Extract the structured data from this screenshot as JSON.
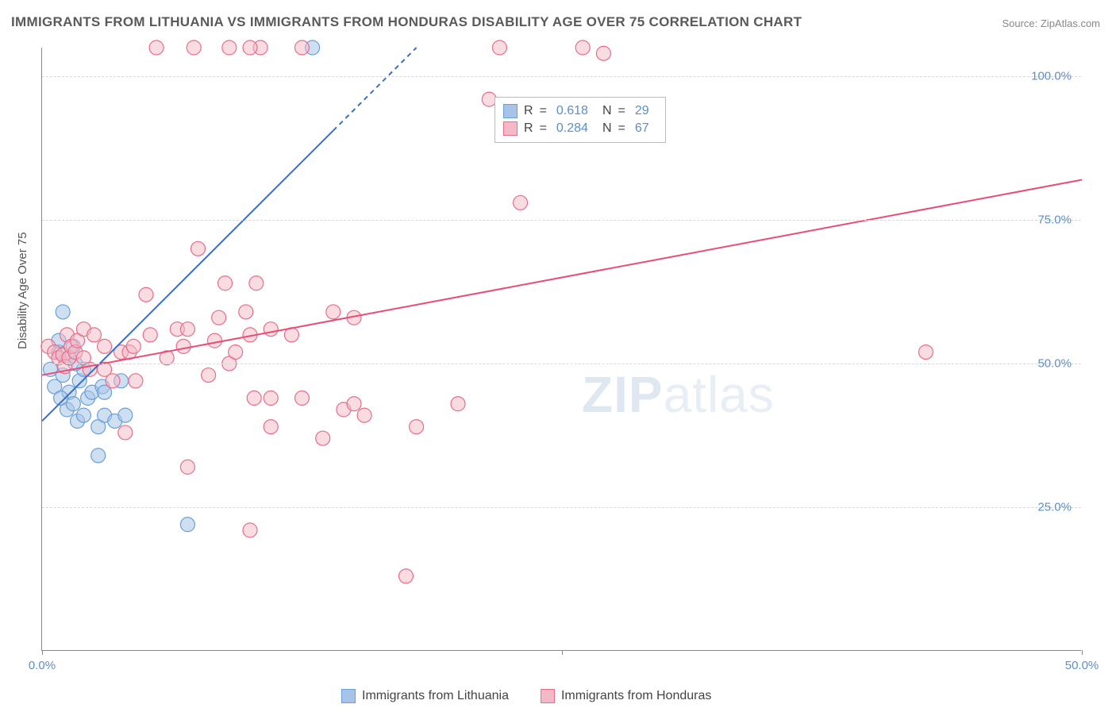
{
  "title": "IMMIGRANTS FROM LITHUANIA VS IMMIGRANTS FROM HONDURAS DISABILITY AGE OVER 75 CORRELATION CHART",
  "source": "Source: ZipAtlas.com",
  "y_axis_label": "Disability Age Over 75",
  "watermark_bold": "ZIP",
  "watermark_rest": "atlas",
  "chart": {
    "type": "scatter",
    "background_color": "#ffffff",
    "grid_color": "#d8d8d8",
    "axis_color": "#888888",
    "xlim": [
      0,
      50
    ],
    "ylim": [
      0,
      105
    ],
    "x_ticks": [
      0,
      25,
      50
    ],
    "x_tick_labels": [
      "0.0%",
      "",
      "50.0%"
    ],
    "y_ticks": [
      25,
      50,
      75,
      100
    ],
    "y_tick_labels": [
      "25.0%",
      "50.0%",
      "75.0%",
      "100.0%"
    ],
    "tick_label_color": "#5b8ecb",
    "tick_label_fontsize": 15,
    "axis_label_color": "#555555",
    "axis_label_fontsize": 15,
    "title_fontsize": 17,
    "title_color": "#5a5a5a"
  },
  "series": [
    {
      "name": "Immigrants from Lithuania",
      "color_fill": "#a7c4e8",
      "color_stroke": "#6a9fd6",
      "marker_radius": 9,
      "fill_opacity": 0.55,
      "R": "0.618",
      "N": "29",
      "trend": {
        "x0": 0,
        "y0": 40,
        "x1": 18,
        "y1": 105,
        "dash_from_x": 14,
        "stroke": "#3a6fc4",
        "stroke_width": 2
      },
      "points": [
        [
          0.4,
          49
        ],
        [
          0.6,
          46
        ],
        [
          0.8,
          52
        ],
        [
          0.8,
          54
        ],
        [
          1.0,
          48
        ],
        [
          1.0,
          59
        ],
        [
          1.2,
          42
        ],
        [
          1.3,
          45
        ],
        [
          1.3,
          51
        ],
        [
          1.5,
          43
        ],
        [
          1.5,
          53
        ],
        [
          1.7,
          40
        ],
        [
          1.8,
          47
        ],
        [
          2.0,
          41
        ],
        [
          2.0,
          49
        ],
        [
          2.2,
          44
        ],
        [
          2.4,
          45
        ],
        [
          2.7,
          34
        ],
        [
          2.7,
          39
        ],
        [
          2.9,
          46
        ],
        [
          3.0,
          45
        ],
        [
          3.0,
          41
        ],
        [
          3.5,
          40
        ],
        [
          4.0,
          41
        ],
        [
          3.8,
          47
        ],
        [
          7.0,
          22
        ],
        [
          13.0,
          105
        ],
        [
          1.6,
          50
        ],
        [
          0.9,
          44
        ]
      ]
    },
    {
      "name": "Immigrants from Honduras",
      "color_fill": "#f4b8c6",
      "color_stroke": "#e86d8a",
      "marker_radius": 9,
      "fill_opacity": 0.5,
      "R": "0.284",
      "N": "67",
      "trend": {
        "x0": 0,
        "y0": 48,
        "x1": 50,
        "y1": 82,
        "stroke": "#e94d77",
        "stroke_width": 2
      },
      "points": [
        [
          0.3,
          53
        ],
        [
          0.6,
          52
        ],
        [
          0.8,
          51
        ],
        [
          1.0,
          51.5
        ],
        [
          1.1,
          49.5
        ],
        [
          1.2,
          55
        ],
        [
          1.3,
          51
        ],
        [
          1.4,
          53
        ],
        [
          1.6,
          52
        ],
        [
          1.7,
          54
        ],
        [
          2.0,
          56
        ],
        [
          2.0,
          51
        ],
        [
          2.3,
          49
        ],
        [
          2.5,
          55
        ],
        [
          3.0,
          53
        ],
        [
          3.0,
          49
        ],
        [
          3.4,
          47
        ],
        [
          3.8,
          52
        ],
        [
          4.0,
          38
        ],
        [
          4.2,
          52
        ],
        [
          4.4,
          53
        ],
        [
          4.5,
          47
        ],
        [
          5.0,
          62
        ],
        [
          5.2,
          55
        ],
        [
          5.5,
          105
        ],
        [
          6.0,
          51
        ],
        [
          6.5,
          56
        ],
        [
          6.8,
          53
        ],
        [
          7.0,
          32
        ],
        [
          7.0,
          56
        ],
        [
          7.3,
          105
        ],
        [
          7.5,
          70
        ],
        [
          8.0,
          48
        ],
        [
          8.3,
          54
        ],
        [
          8.5,
          58
        ],
        [
          8.8,
          64
        ],
        [
          9.0,
          50
        ],
        [
          9.0,
          105
        ],
        [
          9.3,
          52
        ],
        [
          9.8,
          59
        ],
        [
          10.2,
          44
        ],
        [
          10.0,
          21
        ],
        [
          10.0,
          55
        ],
        [
          10.3,
          64
        ],
        [
          10.5,
          105
        ],
        [
          11.0,
          56
        ],
        [
          11.0,
          39
        ],
        [
          11.0,
          44
        ],
        [
          12.0,
          55
        ],
        [
          12.5,
          44
        ],
        [
          12.5,
          105
        ],
        [
          13.5,
          37
        ],
        [
          14.0,
          59
        ],
        [
          14.5,
          42
        ],
        [
          15.0,
          58
        ],
        [
          15.0,
          43
        ],
        [
          15.5,
          41
        ],
        [
          17.5,
          13
        ],
        [
          18.0,
          39
        ],
        [
          20.0,
          43
        ],
        [
          21.5,
          96
        ],
        [
          22.0,
          105
        ],
        [
          23.0,
          78
        ],
        [
          26.0,
          105
        ],
        [
          27.0,
          104
        ],
        [
          42.5,
          52
        ],
        [
          10.0,
          105
        ]
      ]
    }
  ],
  "legend": {
    "swatch_size": 18,
    "label_R": "R",
    "label_N": "N",
    "label_eq": "="
  },
  "bottom_legend": {
    "items": [
      {
        "label": "Immigrants from Lithuania",
        "fill": "#a7c4e8",
        "stroke": "#6a9fd6"
      },
      {
        "label": "Immigrants from Honduras",
        "fill": "#f4b8c6",
        "stroke": "#e86d8a"
      }
    ]
  }
}
